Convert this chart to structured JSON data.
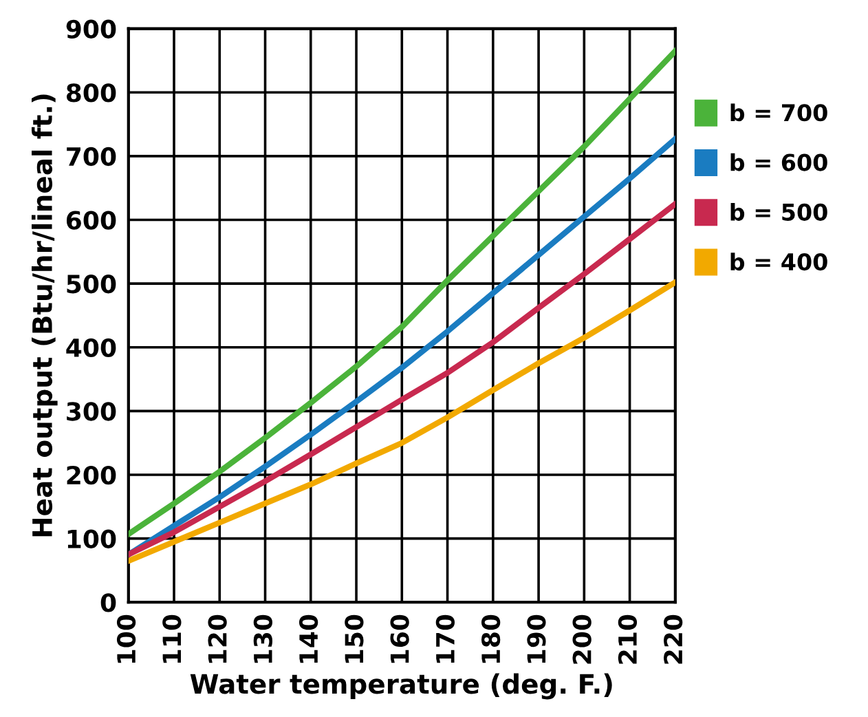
{
  "chart_data": {
    "type": "line",
    "xlabel": "Water temperature (deg. F.)",
    "ylabel": "Heat output (Btu/hr/lineal ft.)",
    "x": [
      100,
      110,
      120,
      130,
      140,
      150,
      160,
      170,
      180,
      190,
      200,
      210,
      220
    ],
    "xlim": [
      100,
      220
    ],
    "xticks": [
      100,
      110,
      120,
      130,
      140,
      150,
      160,
      170,
      180,
      190,
      200,
      210,
      220
    ],
    "ylim": [
      0,
      900
    ],
    "yticks": [
      0,
      100,
      200,
      300,
      400,
      500,
      600,
      700,
      800,
      900
    ],
    "grid": true,
    "legend": "right",
    "marker": "none",
    "line_style": "solid",
    "series": [
      {
        "name": "b = 700",
        "color": "#4bb33a",
        "values": [
          107,
          155,
          205,
          258,
          313,
          370,
          432,
          505,
          575,
          645,
          715,
          790,
          865
        ]
      },
      {
        "name": "b = 600",
        "color": "#1a7cc1",
        "values": [
          75,
          120,
          165,
          213,
          263,
          315,
          368,
          425,
          485,
          545,
          605,
          665,
          727
        ]
      },
      {
        "name": "b = 500",
        "color": "#c8294f",
        "values": [
          75,
          110,
          150,
          190,
          232,
          275,
          318,
          360,
          408,
          462,
          515,
          570,
          625
        ]
      },
      {
        "name": "b = 400",
        "color": "#f2a900",
        "values": [
          65,
          95,
          125,
          155,
          185,
          218,
          250,
          290,
          333,
          375,
          415,
          458,
          502
        ]
      }
    ]
  }
}
